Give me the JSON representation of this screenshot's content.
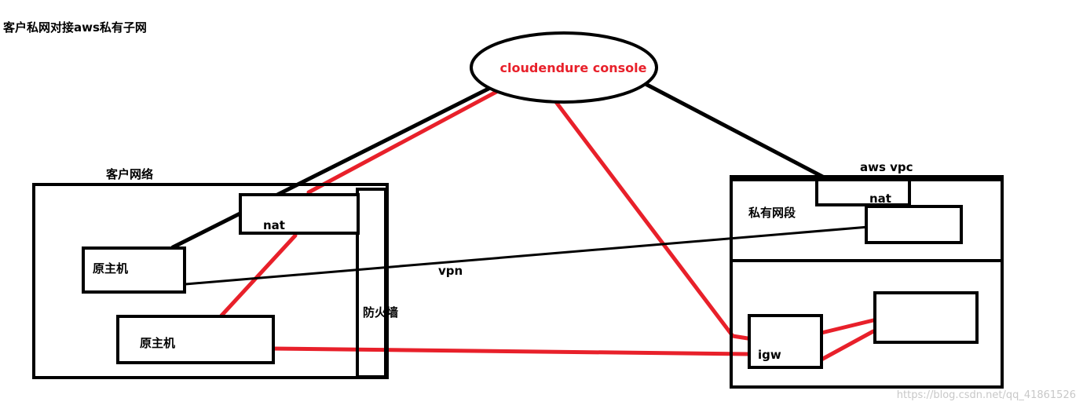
{
  "title": "客户私网对接aws私有子网",
  "console": {
    "label": "cloudendure console"
  },
  "customer_network": {
    "label": "客户网络",
    "nat_label": "nat",
    "host1_label": "原主机",
    "host2_label": "原主机",
    "firewall_label": "防火墙"
  },
  "aws_vpc": {
    "label": "aws vpc",
    "nat_label": "nat",
    "private_segment_label": "私有网段",
    "igw_label": "igw"
  },
  "vpn_label": "vpn",
  "watermark": "https://blog.csdn.net/qq_41861526",
  "colors": {
    "black": "#000000",
    "red": "#e8202a",
    "watermark": "#c8c8c8"
  }
}
